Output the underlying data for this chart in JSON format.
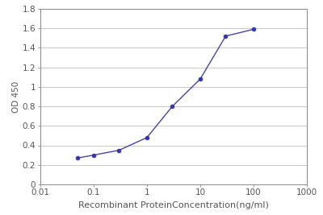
{
  "x": [
    0.05,
    0.1,
    0.3,
    1.0,
    3.0,
    10.0,
    30.0,
    100.0
  ],
  "y": [
    0.27,
    0.3,
    0.35,
    0.48,
    0.8,
    1.08,
    1.52,
    1.59
  ],
  "line_color": "#4444aa",
  "marker_color": "#3333aa",
  "marker_size": 3.5,
  "line_width": 1.0,
  "ylabel": "OD 450",
  "xlabel": "Recombinant ProteinConcentration(ng/ml)",
  "xlim": [
    0.01,
    1000
  ],
  "ylim": [
    0,
    1.8
  ],
  "yticks": [
    0,
    0.2,
    0.4,
    0.6,
    0.8,
    1.0,
    1.2,
    1.4,
    1.6,
    1.8
  ],
  "ytick_labels": [
    "0",
    "0.2",
    "0.4",
    "0.6",
    "0.8",
    "1",
    "1.2",
    "1.4",
    "1.6",
    "1.8"
  ],
  "xtick_vals": [
    0.01,
    0.1,
    1,
    10,
    100,
    1000
  ],
  "xtick_labels": [
    "0.01",
    "0.1",
    "1",
    "10",
    "100",
    "1000"
  ],
  "background_color": "#ffffff",
  "grid_color": "#c8c8c8",
  "spine_color": "#888888",
  "ylabel_fontsize": 7.5,
  "xlabel_fontsize": 8,
  "tick_fontsize": 7.5,
  "tick_color": "#555555"
}
